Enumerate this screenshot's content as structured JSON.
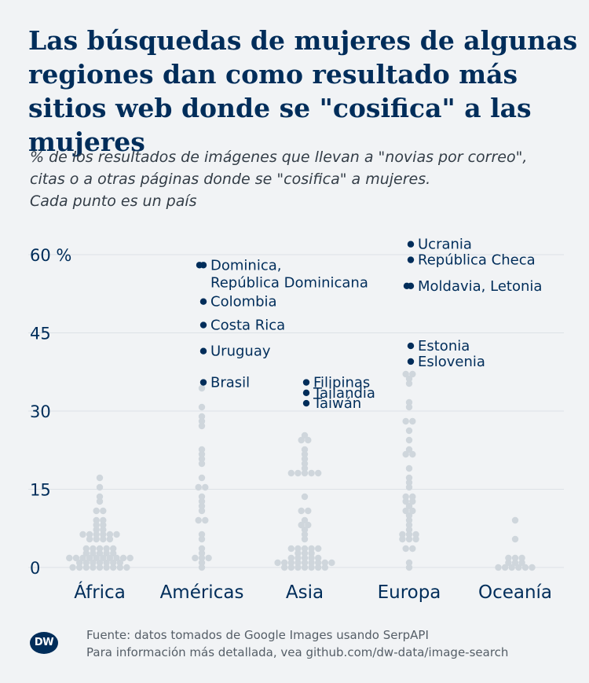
{
  "title": "Las búsquedas de mujeres de algunas regiones dan como resultado más sitios web donde se \"cosifica\" a las mujeres",
  "subtitle": {
    "line1": "% de los resultados de imágenes que llevan a \"novias por correo\",",
    "line2": "citas o a otras páginas donde se \"cosifica\" a mujeres.",
    "line3": "Cada punto es un país"
  },
  "footer": {
    "logo": "DW",
    "source_line1": "Fuente: datos tomados de Google Images usando SerpAPI",
    "source_line2": "Para información más detallada, vea github.com/dw-data/image-search"
  },
  "colors": {
    "background": "#f1f3f5",
    "dot": "#cfd6dc",
    "highlight": "#002d5a",
    "text": "#002d5a",
    "grid": "#dde2e6"
  },
  "chart_data": {
    "type": "scatter",
    "subtype": "beeswarm",
    "ylim": [
      0,
      60
    ],
    "yticks": [
      {
        "value": 0,
        "label": "0"
      },
      {
        "value": 15,
        "label": "15"
      },
      {
        "value": 30,
        "label": "30"
      },
      {
        "value": 45,
        "label": "45"
      },
      {
        "value": 60,
        "label": "60 %"
      }
    ],
    "categories": [
      "África",
      "Américas",
      "Asia",
      "Europa",
      "Oceanía"
    ],
    "series": [
      {
        "name": "África",
        "values": [
          0,
          0,
          0,
          0,
          0,
          0,
          0,
          0,
          0,
          1,
          1,
          1,
          1,
          1,
          1,
          1,
          2,
          2,
          2,
          2,
          2,
          2,
          2,
          2,
          2,
          2,
          3,
          3,
          3,
          3,
          3,
          4,
          4,
          4,
          4,
          4,
          5,
          5,
          5,
          5,
          6,
          6,
          6,
          6,
          6,
          6,
          7,
          7,
          8,
          8,
          9,
          9,
          11,
          11,
          13,
          14,
          15,
          17
        ]
      },
      {
        "name": "Américas",
        "values": [
          0,
          1,
          2,
          2,
          2,
          3,
          4,
          5,
          6,
          9,
          9,
          11,
          12,
          13,
          14,
          15,
          15,
          17,
          20,
          21,
          22,
          23,
          27,
          28,
          29,
          31,
          34
        ],
        "highlights": [
          {
            "value": 58,
            "dots": 2,
            "label_lines": [
              "Dominica,",
              "República Dominicana"
            ]
          },
          {
            "value": 51,
            "dots": 1,
            "label_lines": [
              "Colombia"
            ]
          },
          {
            "value": 46.5,
            "dots": 1,
            "label_lines": [
              "Costa Rica"
            ]
          },
          {
            "value": 41.5,
            "dots": 1,
            "label_lines": [
              "Uruguay"
            ]
          },
          {
            "value": 35.5,
            "dots": 1,
            "label_lines": [
              "Brasil"
            ]
          }
        ]
      },
      {
        "name": "Asia",
        "values": [
          0,
          0,
          0,
          0,
          0,
          0,
          0,
          1,
          1,
          1,
          1,
          1,
          1,
          1,
          1,
          1,
          2,
          2,
          2,
          2,
          2,
          3,
          3,
          3,
          4,
          4,
          4,
          4,
          4,
          5,
          6,
          7,
          8,
          8,
          9,
          11,
          11,
          14,
          18,
          18,
          18,
          18,
          18,
          19,
          20,
          21,
          22,
          23,
          24,
          24,
          25
        ],
        "highlights": [
          {
            "value": 35.5,
            "dots": 1,
            "label_lines": [
              "Filipinas"
            ]
          },
          {
            "value": 33.5,
            "dots": 1,
            "label_lines": [
              "Tailandia"
            ]
          },
          {
            "value": 31.5,
            "dots": 1,
            "label_lines": [
              "Taiwán"
            ]
          }
        ]
      },
      {
        "name": "Europa",
        "values": [
          0,
          1,
          4,
          4,
          5,
          5,
          5,
          6,
          6,
          6,
          7,
          8,
          9,
          10,
          11,
          11,
          12,
          13,
          13,
          14,
          14,
          15,
          16,
          17,
          19,
          22,
          22,
          23,
          24,
          26,
          28,
          28,
          31,
          32,
          35,
          36,
          37,
          37
        ],
        "highlights": [
          {
            "value": 62,
            "dots": 1,
            "label_lines": [
              "Ucrania"
            ]
          },
          {
            "value": 59,
            "dots": 1,
            "label_lines": [
              "República Checa"
            ]
          },
          {
            "value": 54,
            "dots": 2,
            "label_lines": [
              "Moldavia, Letonia"
            ]
          },
          {
            "value": 42.5,
            "dots": 1,
            "label_lines": [
              "Estonia"
            ]
          },
          {
            "value": 39.5,
            "dots": 1,
            "label_lines": [
              "Eslovenia"
            ]
          }
        ]
      },
      {
        "name": "Oceanía",
        "values": [
          0,
          0,
          0,
          0,
          0,
          0,
          1,
          1,
          1,
          2,
          2,
          2,
          5,
          9
        ]
      }
    ]
  }
}
